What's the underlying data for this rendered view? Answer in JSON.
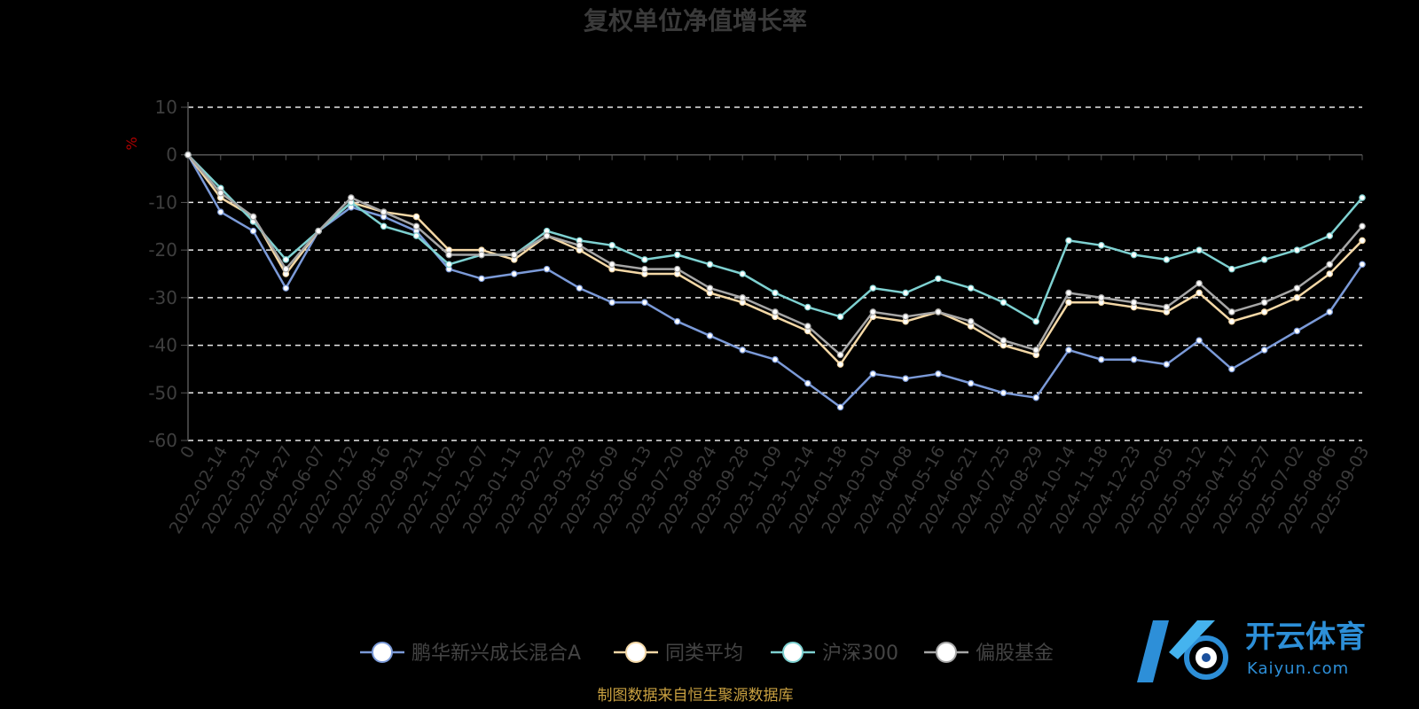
{
  "chart_data": {
    "type": "line",
    "title": "复权单位净值增长率",
    "ylabel": "%",
    "ylim": [
      -60,
      10
    ],
    "yticks": [
      10,
      0,
      -10,
      -20,
      -30,
      -40,
      -50,
      -60
    ],
    "grid": true,
    "legend_position": "bottom",
    "x": [
      "0",
      "2022-02-14",
      "2022-03-21",
      "2022-04-27",
      "2022-06-07",
      "2022-07-12",
      "2022-08-16",
      "2022-09-21",
      "2022-11-02",
      "2022-12-07",
      "2023-01-11",
      "2023-02-22",
      "2023-03-29",
      "2023-05-09",
      "2023-06-13",
      "2023-07-20",
      "2023-08-24",
      "2023-09-28",
      "2023-11-09",
      "2023-12-14",
      "2024-01-18",
      "2024-03-01",
      "2024-04-08",
      "2024-05-16",
      "2024-06-21",
      "2024-07-25",
      "2024-08-29",
      "2024-10-14",
      "2024-11-18",
      "2024-12-23",
      "2025-02-05",
      "2025-03-12",
      "2025-04-17",
      "2025-05-27",
      "2025-07-02",
      "2025-08-06",
      "2025-09-03"
    ],
    "series": [
      {
        "name": "鹏华新兴成长混合A",
        "color": "#7b9ad8",
        "values": [
          0,
          -12,
          -16,
          -28,
          -16,
          -11,
          -13,
          -16,
          -24,
          -26,
          -25,
          -24,
          -28,
          -31,
          -31,
          -35,
          -38,
          -41,
          -43,
          -48,
          -53,
          -46,
          -47,
          -46,
          -48,
          -50,
          -51,
          -41,
          -43,
          -43,
          -44,
          -39,
          -45,
          -41,
          -37,
          -33,
          -23
        ]
      },
      {
        "name": "同类平均",
        "color": "#f4d8a6",
        "values": [
          0,
          -9,
          -13,
          -25,
          -16,
          -10,
          -12,
          -13,
          -20,
          -20,
          -22,
          -17,
          -20,
          -24,
          -25,
          -25,
          -29,
          -31,
          -34,
          -37,
          -44,
          -34,
          -35,
          -33,
          -36,
          -40,
          -42,
          -31,
          -31,
          -32,
          -33,
          -29,
          -35,
          -33,
          -30,
          -25,
          -18
        ]
      },
      {
        "name": "沪深300",
        "color": "#7ed1d1",
        "values": [
          0,
          -7,
          -14,
          -22,
          -16,
          -10,
          -15,
          -17,
          -23,
          -21,
          -21,
          -16,
          -18,
          -19,
          -22,
          -21,
          -23,
          -25,
          -29,
          -32,
          -34,
          -28,
          -29,
          -26,
          -28,
          -31,
          -35,
          -18,
          -19,
          -21,
          -22,
          -20,
          -24,
          -22,
          -20,
          -17,
          -9
        ]
      },
      {
        "name": "偏股基金",
        "color": "#a6a6a6",
        "values": [
          0,
          -8,
          -13,
          -24,
          -16,
          -9,
          -12,
          -15,
          -21,
          -21,
          -21,
          -17,
          -19,
          -23,
          -24,
          -24,
          -28,
          -30,
          -33,
          -36,
          -42,
          -33,
          -34,
          -33,
          -35,
          -39,
          -41,
          -29,
          -30,
          -31,
          -32,
          -27,
          -33,
          -31,
          -28,
          -23,
          -15
        ]
      }
    ]
  },
  "source_note": "制图数据来自恒生聚源数据库",
  "watermark": {
    "brand": "开云体育",
    "url": "Kaiyun.com"
  }
}
